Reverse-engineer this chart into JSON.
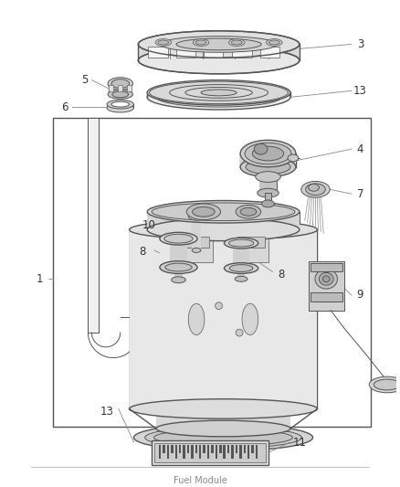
{
  "bg_color": "#ffffff",
  "line_color": "#555555",
  "label_color": "#333333",
  "fig_width": 4.38,
  "fig_height": 5.33,
  "dpi": 100,
  "footer_text": "Fuel Module"
}
